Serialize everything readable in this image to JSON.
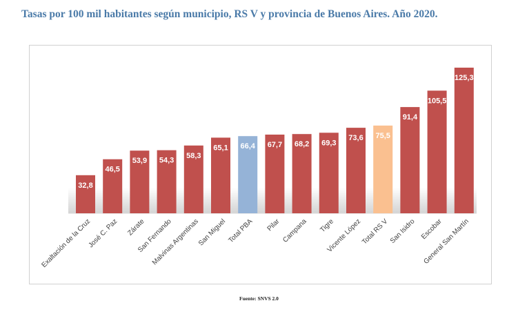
{
  "title": "Tasas por 100 mil habitantes según municipio, RS V y provincia de Buenos Aires. Año 2020.",
  "source": "Fuente: SNVS 2.0",
  "colors": {
    "municipio": "#c0504d",
    "total_pba": "#95b3d7",
    "total_rs": "#fac090",
    "title": "#4a7aa8"
  },
  "chart_data": {
    "type": "bar",
    "categories": [
      "Exaltación de la Cruz",
      "José C. Paz",
      "Zárate",
      "San Fernando",
      "Malvinas Argentinas",
      "San Miguel",
      "Total PBA",
      "Pilar",
      "Campana",
      "Tigre",
      "Vicente López",
      "Total RS V",
      "San Isidro",
      "Escobar",
      "General San Martín"
    ],
    "values": [
      32.8,
      46.5,
      53.9,
      54.3,
      58.3,
      65.1,
      66.4,
      67.7,
      68.2,
      69.3,
      73.6,
      75.5,
      91.4,
      105.5,
      125.3
    ],
    "value_labels": [
      "32,8",
      "46,5",
      "53,9",
      "54,3",
      "58,3",
      "65,1",
      "66,4",
      "67,7",
      "68,2",
      "69,3",
      "73,6",
      "75,5",
      "91,4",
      "105,5",
      "125,3"
    ],
    "highlight": {
      "Total PBA": "total_pba",
      "Total RS V": "total_rs"
    },
    "title": "Tasas por 100 mil habitantes según municipio, RS V y provincia de Buenos Aires. Año 2020.",
    "xlabel": "",
    "ylabel": "",
    "ylim": [
      0,
      130
    ],
    "grid": false,
    "legend": "none"
  }
}
